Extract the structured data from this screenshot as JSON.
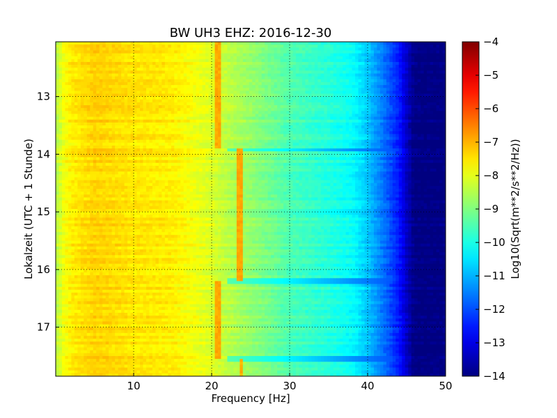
{
  "chart_data": {
    "type": "heatmap",
    "title": "BW UH3 EHZ: 2016-12-30",
    "xlabel": "Frequency [Hz]",
    "ylabel": "Lokalzeit (UTC + 1 Stunde)",
    "xlim": [
      0,
      50
    ],
    "ylim": [
      12.05,
      17.85
    ],
    "y_inverted": true,
    "x_ticks": [
      10,
      20,
      30,
      40,
      50
    ],
    "y_ticks": [
      13,
      14,
      15,
      16,
      17
    ],
    "grid": true,
    "colormap": "jet",
    "colorbar": {
      "label": "Log10(Sqrt(m**2/s**2/Hz))",
      "min": -14,
      "max": -4,
      "ticks": [
        -4,
        -5,
        -6,
        -7,
        -8,
        -9,
        -10,
        -11,
        -12,
        -13,
        -14
      ]
    },
    "spectral_profile": {
      "frequency_hz": [
        0,
        1,
        2,
        5,
        10,
        15,
        18,
        20,
        22,
        25,
        28,
        30,
        35,
        38,
        40,
        42,
        44,
        45,
        46,
        50
      ],
      "log10_amplitude": [
        -8.5,
        -7.9,
        -7.6,
        -7.3,
        -7.5,
        -7.6,
        -7.9,
        -8.1,
        -8.4,
        -8.8,
        -9.2,
        -9.5,
        -9.9,
        -10.2,
        -10.8,
        -11.6,
        -12.5,
        -13.3,
        -14,
        -14
      ]
    },
    "line_features": [
      {
        "frequency_hz": 20.8,
        "time_start": 12.05,
        "time_end": 13.9,
        "log10_amplitude": -6.9
      },
      {
        "frequency_hz": 23.7,
        "time_start": 13.9,
        "time_end": 16.2,
        "log10_amplitude": -6.9
      },
      {
        "frequency_hz": 20.8,
        "time_start": 16.2,
        "time_end": 17.55,
        "log10_amplitude": -6.9
      },
      {
        "frequency_hz": 23.8,
        "time_start": 17.55,
        "time_end": 17.85,
        "log10_amplitude": -7.0
      }
    ],
    "time_features": [
      {
        "time": 13.93,
        "description_value": -9.4
      },
      {
        "time": 15.0,
        "description_value": -8.6
      },
      {
        "time": 16.22,
        "description_value": -9.4
      },
      {
        "time": 17.55,
        "description_value": -9.4
      }
    ]
  }
}
